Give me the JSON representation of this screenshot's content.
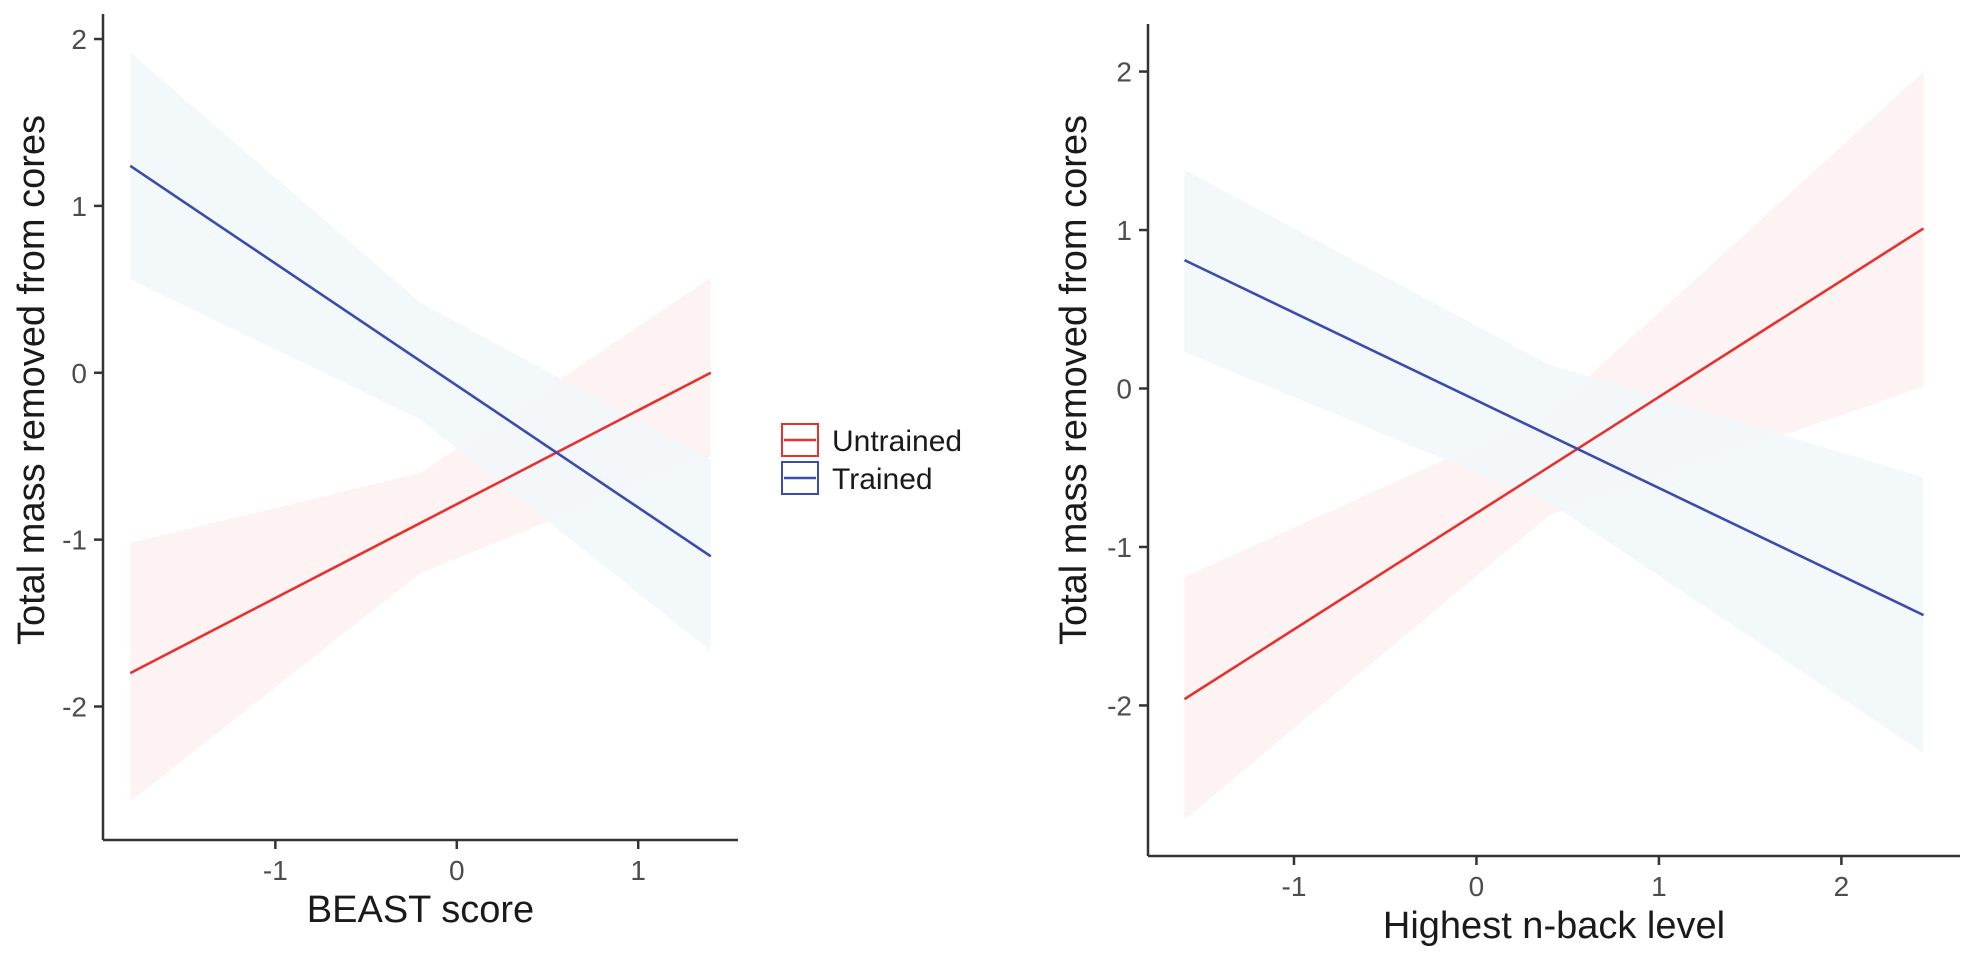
{
  "legend": {
    "placement": "center-right",
    "entries": [
      {
        "label": "Untrained",
        "color": "#e8302f"
      },
      {
        "label": "Trained",
        "color": "#3a4cad"
      }
    ]
  },
  "chart_data": [
    {
      "type": "line",
      "title": "",
      "xlabel": "BEAST score",
      "ylabel": "Total mass removed from cores",
      "xlim": [
        -1.95,
        1.55
      ],
      "ylim": [
        -2.8,
        2.15
      ],
      "x_ticks": [
        -1,
        0,
        1
      ],
      "y_ticks": [
        -2,
        -1,
        0,
        1,
        2
      ],
      "grid": false,
      "series": [
        {
          "name": "Untrained",
          "color": "#e8302f",
          "band_color": "#fdf2f2",
          "x": [
            -1.8,
            -0.2,
            1.4
          ],
          "y": [
            -1.8,
            -0.9,
            0.0
          ],
          "lower": [
            -2.57,
            -1.2,
            -0.5
          ],
          "upper": [
            -1.02,
            -0.6,
            0.57
          ]
        },
        {
          "name": "Trained",
          "color": "#3a4cad",
          "band_color": "#f2f7fb",
          "x": [
            -1.8,
            -0.2,
            1.4
          ],
          "y": [
            1.24,
            0.07,
            -1.1
          ],
          "lower": [
            0.56,
            -0.28,
            -1.67
          ],
          "upper": [
            1.92,
            0.42,
            -0.52
          ]
        }
      ]
    },
    {
      "type": "line",
      "title": "",
      "xlabel": "Highest n-back level",
      "ylabel": "Total mass removed from cores",
      "xlim": [
        -1.8,
        2.65
      ],
      "ylim": [
        -2.95,
        2.3
      ],
      "x_ticks": [
        -1,
        0,
        1,
        2
      ],
      "y_ticks": [
        -2,
        -1,
        0,
        1,
        2
      ],
      "grid": false,
      "series": [
        {
          "name": "Untrained",
          "color": "#e8302f",
          "band_color": "#fdf2f2",
          "x": [
            -1.6,
            0.4,
            2.45
          ],
          "y": [
            -1.96,
            -0.47,
            1.01
          ],
          "lower": [
            -2.72,
            -0.8,
            0.01
          ],
          "upper": [
            -1.19,
            -0.15,
            2.0
          ]
        },
        {
          "name": "Trained",
          "color": "#3a4cad",
          "band_color": "#f2f7fb",
          "x": [
            -1.6,
            0.4,
            2.45
          ],
          "y": [
            0.81,
            -0.3,
            -1.43
          ],
          "lower": [
            0.23,
            -0.72,
            -2.3
          ],
          "upper": [
            1.38,
            0.15,
            -0.56
          ]
        }
      ]
    }
  ]
}
